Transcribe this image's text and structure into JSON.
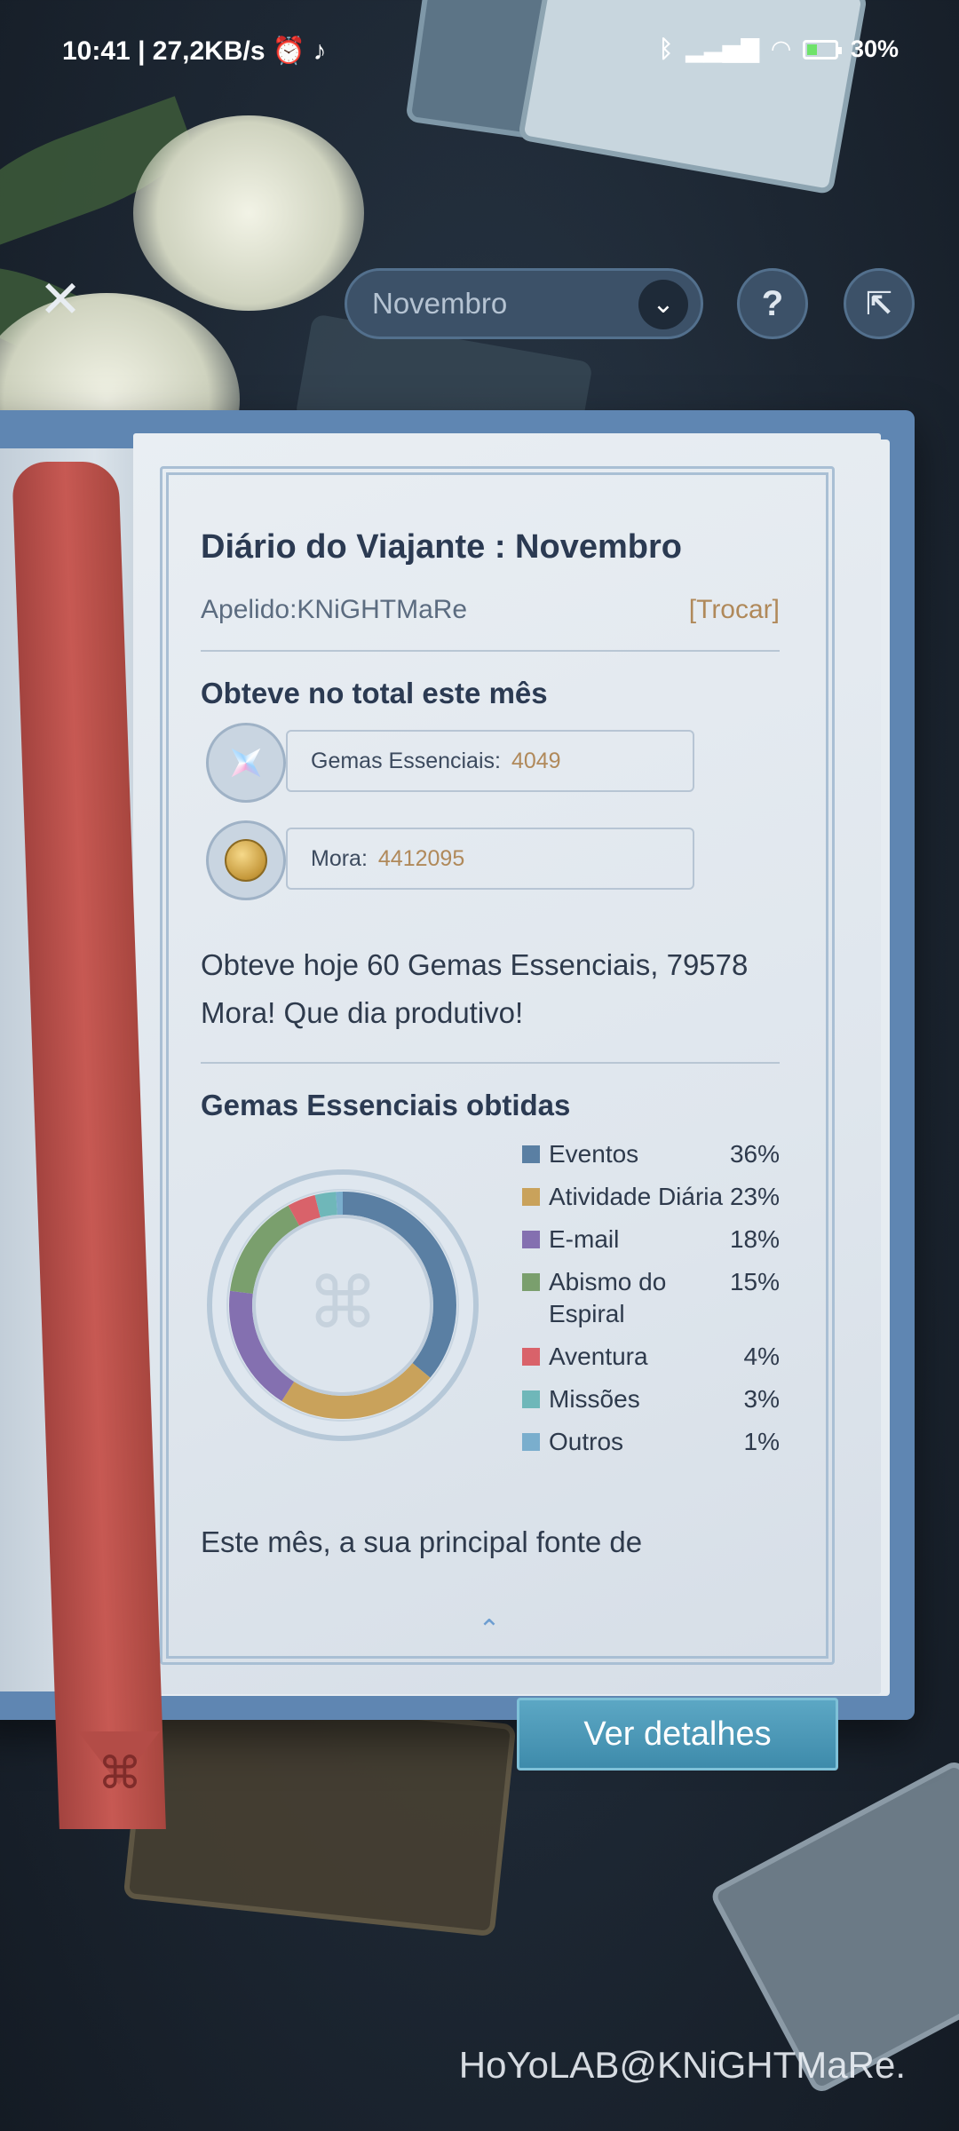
{
  "status_bar": {
    "time": "10:41 | 27,2KB/s",
    "battery": "30%"
  },
  "header": {
    "month_select": "Novembro",
    "help_label": "?"
  },
  "diary": {
    "title": "Diário do Viajante : Novembro",
    "nickname": "Apelido:KNiGHTMaRe",
    "swap_label": "[Trocar]",
    "month_total_title": "Obteve no total este mês",
    "gems_label": "Gemas Essenciais:",
    "gems_value": "4049",
    "mora_label": "Mora:",
    "mora_value": "4412095",
    "today_summary": "Obteve hoje 60 Gemas Essenciais, 79578 Mora! Que dia produtivo!",
    "chart_title": "Gemas Essenciais obtidas",
    "cutoff_text": "Este mês, a sua principal fonte de"
  },
  "chart_data": {
    "type": "pie",
    "title": "Gemas Essenciais obtidas",
    "categories": [
      "Eventos",
      "Atividade Diária",
      "E-mail",
      "Abismo do Espiral",
      "Aventura",
      "Missões",
      "Outros"
    ],
    "values": [
      36,
      23,
      18,
      15,
      4,
      3,
      1
    ],
    "percent_labels": [
      "36%",
      "23%",
      "18%",
      "15%",
      "4%",
      "3%",
      "1%"
    ],
    "colors": [
      "#5a7fa3",
      "#c9a25b",
      "#8470b0",
      "#7a9f6d",
      "#d9626a",
      "#6fb7b9",
      "#7aaecd"
    ],
    "legend_position": "right"
  },
  "actions": {
    "details_label": "Ver detalhes"
  },
  "watermark": "HoYoLAB@KNiGHTMaRe."
}
